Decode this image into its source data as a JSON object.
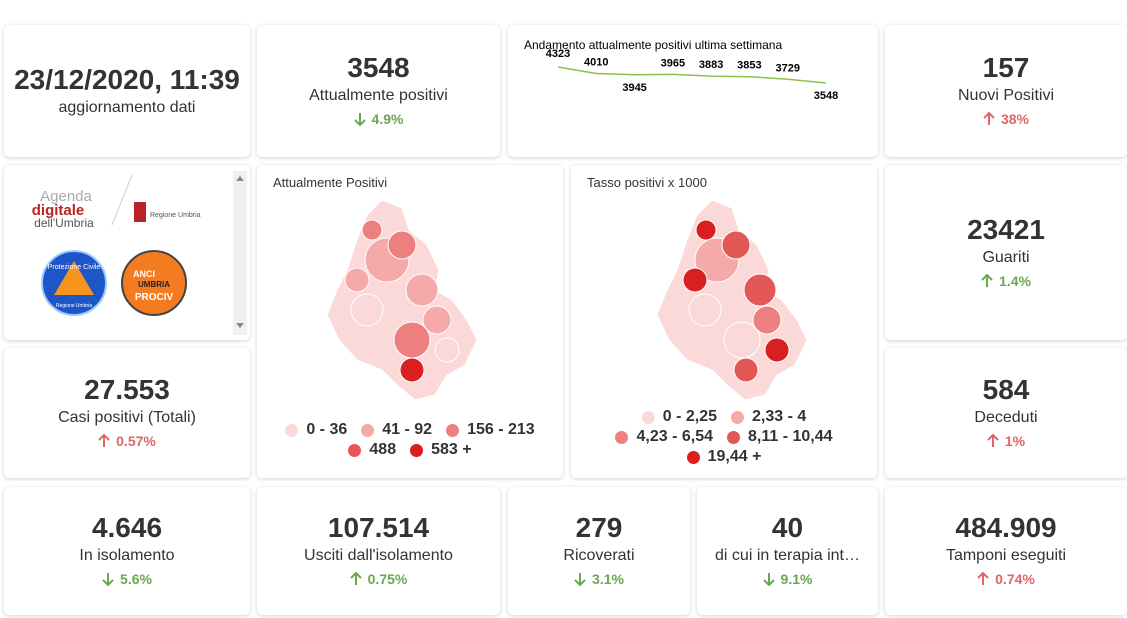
{
  "cards": [
    {
      "value": "23/12/2020, 11:39",
      "label": "aggiornamento dati"
    },
    {
      "value": "3548",
      "label": "Attualmente positivi",
      "change": "4.9%",
      "direction": "down",
      "color": "#6aa84f"
    },
    {
      "value": "157",
      "label": "Nuovi Positivi",
      "change": "38%",
      "direction": "up",
      "color": "#e06666"
    },
    {
      "value": "23421",
      "label": "Guariti",
      "change": "1.4%",
      "direction": "up",
      "color": "#6aa84f"
    },
    {
      "value": "27.553",
      "label": "Casi positivi (Totali)",
      "change": "0.57%",
      "direction": "up",
      "color": "#e06666"
    },
    {
      "value": "584",
      "label": "Deceduti",
      "change": "1%",
      "direction": "up",
      "color": "#e06666"
    },
    {
      "value": "4.646",
      "label": "In isolamento",
      "change": "5.6%",
      "direction": "down",
      "color": "#6aa84f"
    },
    {
      "value": "107.514",
      "label": "Usciti dall'isolamento",
      "change": "0.75%",
      "direction": "up",
      "color": "#6aa84f"
    },
    {
      "value": "279",
      "label": "Ricoverati",
      "change": "3.1%",
      "direction": "down",
      "color": "#6aa84f"
    },
    {
      "value": "40",
      "label": "di cui in terapia int…",
      "change": "9.1%",
      "direction": "down",
      "color": "#6aa84f"
    },
    {
      "value": "484.909",
      "label": "Tamponi eseguiti",
      "change": "0.74%",
      "direction": "up",
      "color": "#e06666"
    }
  ],
  "trend": {
    "title": "Andamento attualmente positivi ultima settimana",
    "values": [
      4323,
      4010,
      3945,
      3965,
      3883,
      3853,
      3729,
      3548
    ],
    "color": "#8bc34a"
  },
  "logos": {
    "agenda": [
      "Agenda",
      "digitale",
      "dell'Umbria"
    ],
    "regione": "Regione Umbria",
    "protezione": [
      "Protezione Civile",
      "Regione Umbria"
    ],
    "anci": [
      "ANCI",
      "UMBRIA",
      "PROCIV"
    ]
  },
  "maps": [
    {
      "title": "Attualmente Positivi",
      "legend": [
        "0 - 36",
        "41 - 92",
        "156 - 213",
        "488",
        "583 +"
      ],
      "colors": [
        "#fbd9d9",
        "#f5a9a9",
        "#ee7f7f",
        "#e45757",
        "#d91f1f"
      ]
    },
    {
      "title": "Tasso positivi x 1000",
      "legend": [
        "0 - 2,25",
        "2,33 - 4",
        "4,23 - 6,54",
        "8,11 - 10,44",
        "19,44 +"
      ],
      "colors": [
        "#fbd9d9",
        "#f5a9a9",
        "#ee7f7f",
        "#e45757",
        "#d91f1f"
      ]
    }
  ]
}
